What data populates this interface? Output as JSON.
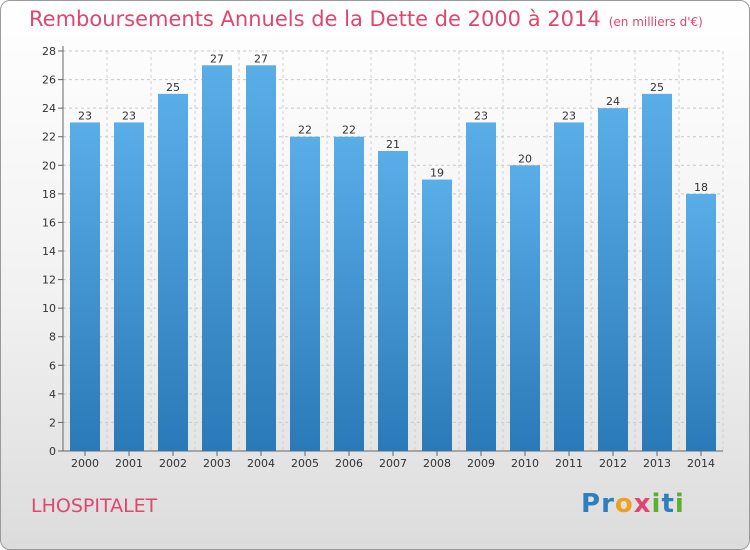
{
  "title": "Remboursements Annuels de la Dette de 2000 à 2014",
  "unit": "(en milliers d'€)",
  "commune": "LHOSPITALET",
  "logo": "Proxiti",
  "colors": {
    "title": "#e0466e",
    "bar_top": "#5aaee8",
    "bar_bottom": "#2a79b8",
    "logo": [
      "#2f7fc0",
      "#2f7fc0",
      "#f0a020",
      "#e0466e",
      "#5bb030",
      "#2f7fc0",
      "#5bb030"
    ]
  },
  "chart_data": {
    "type": "bar",
    "categories": [
      "2000",
      "2001",
      "2002",
      "2003",
      "2004",
      "2005",
      "2006",
      "2007",
      "2008",
      "2009",
      "2010",
      "2011",
      "2012",
      "2013",
      "2014"
    ],
    "values": [
      23,
      23,
      25,
      27,
      27,
      22,
      22,
      21,
      19,
      23,
      20,
      23,
      24,
      25,
      18
    ],
    "title": "Remboursements Annuels de la Dette de 2000 à 2014",
    "ylim": [
      0,
      28
    ],
    "yticks": [
      0,
      2,
      4,
      6,
      8,
      10,
      12,
      14,
      16,
      18,
      20,
      22,
      24,
      26,
      28
    ],
    "grid": true
  }
}
